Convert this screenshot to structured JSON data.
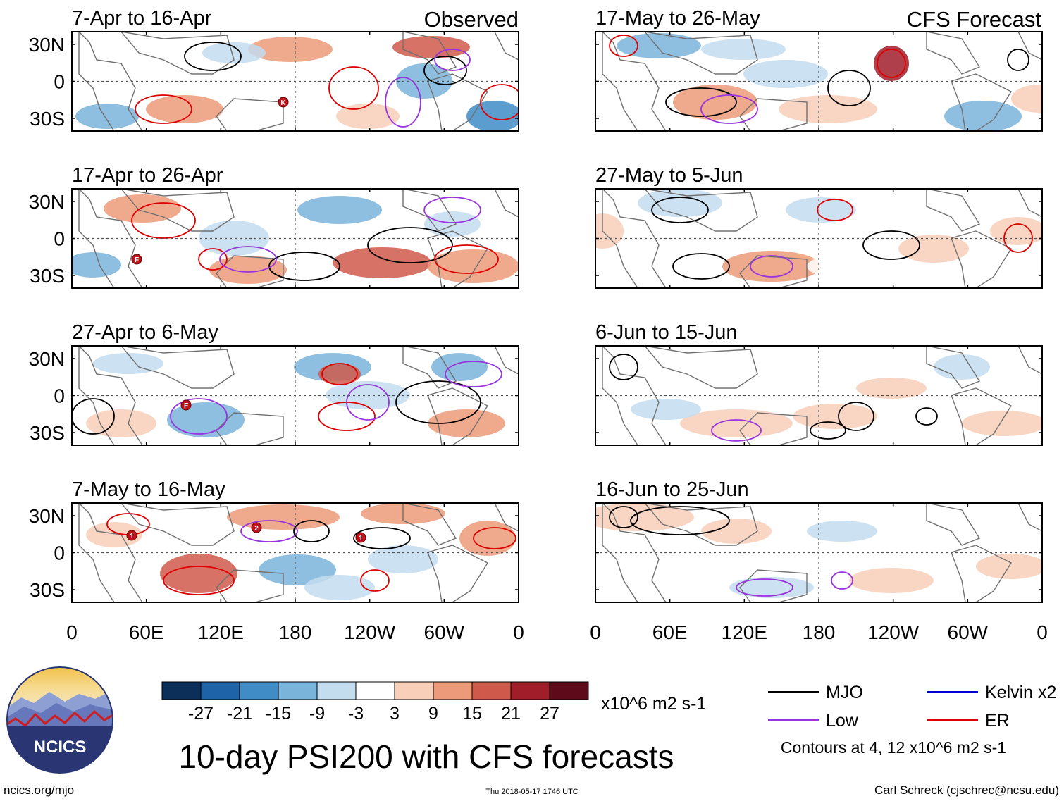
{
  "header": {
    "observed_label": "Observed",
    "forecast_label": "CFS Forecast"
  },
  "chart_data": {
    "type": "heatmap",
    "title": "10-day PSI200 with CFS forecasts",
    "variable": "200-hPa streamfunction anomaly (PSI200)",
    "units": "x10^6 m2 s-1",
    "x_ticks": [
      "0",
      "60E",
      "120E",
      "180",
      "120W",
      "60W",
      "0"
    ],
    "y_ticks": [
      "30N",
      "0",
      "30S"
    ],
    "color_scale": {
      "levels": [
        "-27",
        "-21",
        "-15",
        "-9",
        "-3",
        "3",
        "9",
        "15",
        "21",
        "27"
      ],
      "colors": [
        "#0b2f59",
        "#1e62a8",
        "#3f8cc7",
        "#7bb4db",
        "#c3dcee",
        "#ffffff",
        "#f8cfb9",
        "#ec9a79",
        "#cf5a4b",
        "#a11d2a",
        "#5e0a1a"
      ]
    },
    "panels": [
      {
        "period": "7-Apr to 16-Apr",
        "source": "Observed",
        "column": "left",
        "tc_markers": [
          "K"
        ]
      },
      {
        "period": "17-Apr to 26-Apr",
        "source": "Observed",
        "column": "left",
        "tc_markers": [
          "F"
        ]
      },
      {
        "period": "27-Apr to 6-May",
        "source": "Observed",
        "column": "left",
        "tc_markers": [
          "F"
        ]
      },
      {
        "period": "7-May to 16-May",
        "source": "Observed",
        "column": "left",
        "tc_markers": [
          "1",
          "2",
          "1"
        ]
      },
      {
        "period": "17-May to 26-May",
        "source": "CFS Forecast",
        "column": "right",
        "tc_markers": []
      },
      {
        "period": "27-May to 5-Jun",
        "source": "CFS Forecast",
        "column": "right",
        "tc_markers": []
      },
      {
        "period": "6-Jun to 15-Jun",
        "source": "CFS Forecast",
        "column": "right",
        "tc_markers": []
      },
      {
        "period": "16-Jun to 25-Jun",
        "source": "CFS Forecast",
        "column": "right",
        "tc_markers": []
      }
    ],
    "legend": [
      {
        "label": "MJO",
        "color": "#000000"
      },
      {
        "label": "Kelvin x2",
        "color": "#0000cc"
      },
      {
        "label": "Low",
        "color": "#9933dd"
      },
      {
        "label": "ER",
        "color": "#dd0000"
      }
    ],
    "contour_note": "Contours at 4, 12 x10^6 m2 s-1"
  },
  "footer": {
    "logo_text": "NCICS",
    "site": "ncics.org/mjo",
    "timestamp": "Thu 2018-05-17 1746 UTC",
    "author": "Carl Schreck (cjschrec@ncsu.edu)"
  }
}
